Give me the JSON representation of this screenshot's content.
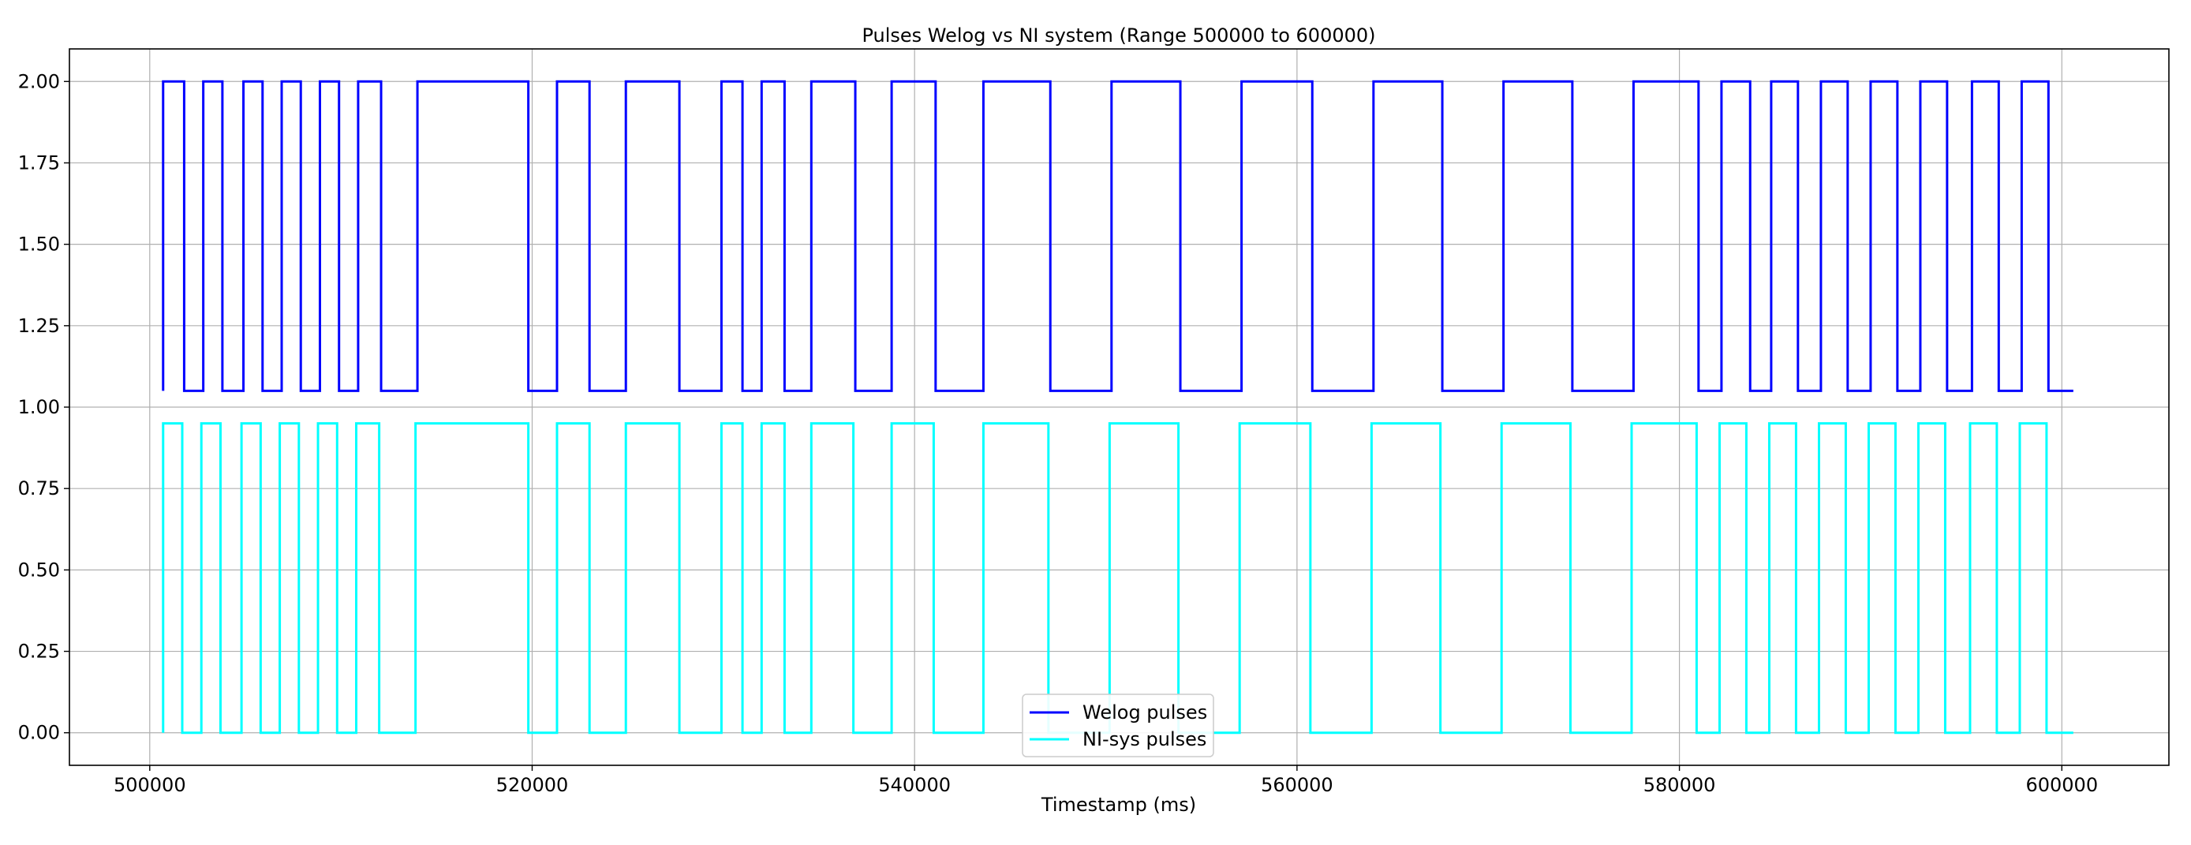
{
  "chart_data": {
    "type": "line",
    "title": "Pulses Welog vs NI system (Range 500000 to 600000)",
    "xlabel": "Timestamp (ms)",
    "ylabel": "",
    "xlim": [
      495800,
      605600
    ],
    "ylim": [
      -0.1,
      2.1
    ],
    "x_ticks": [
      500000,
      520000,
      540000,
      560000,
      580000,
      600000
    ],
    "x_tick_labels": [
      "500000",
      "520000",
      "540000",
      "560000",
      "580000",
      "600000"
    ],
    "y_ticks": [
      0.0,
      0.25,
      0.5,
      0.75,
      1.0,
      1.25,
      1.5,
      1.75,
      2.0
    ],
    "y_tick_labels": [
      "0.00",
      "0.25",
      "0.50",
      "0.75",
      "1.00",
      "1.25",
      "1.50",
      "1.75",
      "2.00"
    ],
    "grid": true,
    "legend": "lower center",
    "series": [
      {
        "name": "Welog pulses",
        "color": "#0000ff",
        "low": 1.05,
        "high": 2.0,
        "x": [
          500700,
          501800,
          502800,
          503800,
          504900,
          505900,
          506900,
          507900,
          508900,
          509900,
          510900,
          512100,
          514000,
          519800,
          521300,
          523000,
          524900,
          527700,
          529900,
          531000,
          532000,
          533200,
          534600,
          536900,
          538800,
          541100,
          543600,
          547100,
          550300,
          553900,
          557100,
          560800,
          564000,
          567600,
          570800,
          574400,
          577600,
          581000,
          582200,
          583700,
          584800,
          586200,
          587400,
          588800,
          590000,
          591400,
          592600,
          594000,
          595300,
          596700,
          597900,
          599300,
          600600
        ],
        "y": [
          1.05,
          2.0,
          1.05,
          2.0,
          1.05,
          2.0,
          1.05,
          2.0,
          1.05,
          2.0,
          1.05,
          2.0,
          1.05,
          2.0,
          1.05,
          2.0,
          1.05,
          2.0,
          1.05,
          2.0,
          1.05,
          2.0,
          1.05,
          2.0,
          1.05,
          2.0,
          1.05,
          2.0,
          1.05,
          2.0,
          1.05,
          2.0,
          1.05,
          2.0,
          1.05,
          2.0,
          1.05,
          2.0,
          1.05,
          2.0,
          1.05,
          2.0,
          1.05,
          2.0,
          1.05,
          2.0,
          1.05,
          2.0,
          1.05,
          2.0,
          1.05,
          2.0,
          1.05
        ]
      },
      {
        "name": "NI-sys pulses",
        "color": "#00ffff",
        "low": 0.0,
        "high": 0.95,
        "x": [
          500700,
          501700,
          502700,
          503700,
          504800,
          505800,
          506800,
          507800,
          508800,
          509800,
          510800,
          512000,
          513900,
          519800,
          521300,
          523000,
          524900,
          527700,
          529900,
          531000,
          532000,
          533200,
          534600,
          536800,
          538800,
          541000,
          543600,
          547000,
          550200,
          553800,
          557000,
          560700,
          563900,
          567500,
          570700,
          574300,
          577500,
          580900,
          582100,
          583500,
          584700,
          586100,
          587300,
          588700,
          589900,
          591300,
          592500,
          593900,
          595200,
          596600,
          597800,
          599200,
          600600
        ],
        "y": [
          0.0,
          0.95,
          0.0,
          0.95,
          0.0,
          0.95,
          0.0,
          0.95,
          0.0,
          0.95,
          0.0,
          0.95,
          0.0,
          0.95,
          0.0,
          0.95,
          0.0,
          0.95,
          0.0,
          0.95,
          0.0,
          0.95,
          0.0,
          0.95,
          0.0,
          0.95,
          0.0,
          0.95,
          0.0,
          0.95,
          0.0,
          0.95,
          0.0,
          0.95,
          0.0,
          0.95,
          0.0,
          0.95,
          0.0,
          0.95,
          0.0,
          0.95,
          0.0,
          0.95,
          0.0,
          0.95,
          0.0,
          0.95,
          0.0,
          0.95,
          0.0,
          0.95,
          0.0
        ]
      }
    ]
  }
}
